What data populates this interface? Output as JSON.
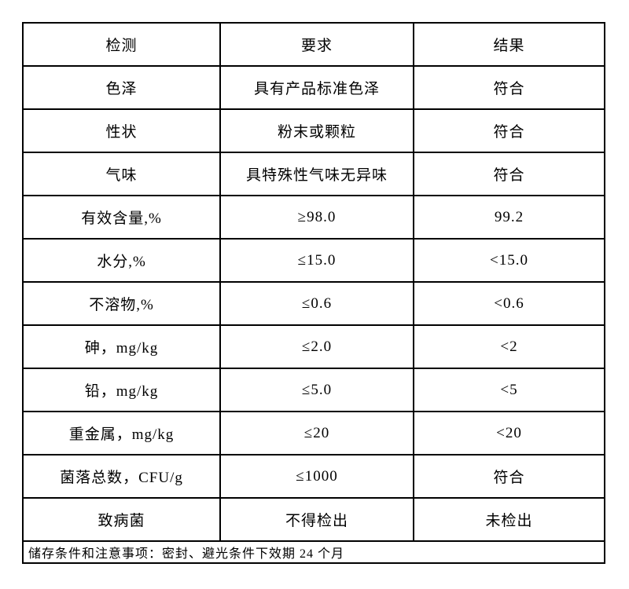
{
  "table": {
    "headers": [
      "检测",
      "要求",
      "结果"
    ],
    "rows": [
      {
        "test": "色泽",
        "requirement": "具有产品标准色泽",
        "result": "符合"
      },
      {
        "test": "性状",
        "requirement": "粉末或颗粒",
        "result": "符合"
      },
      {
        "test": "气味",
        "requirement": "具特殊性气味无异味",
        "result": "符合"
      },
      {
        "test": "有效含量,%",
        "requirement": "≥98.0",
        "result": "99.2"
      },
      {
        "test": "水分,%",
        "requirement": "≤15.0",
        "result": "<15.0"
      },
      {
        "test": "不溶物,%",
        "requirement": "≤0.6",
        "result": "<0.6"
      },
      {
        "test": "砷，mg/kg",
        "requirement": "≤2.0",
        "result": "<2"
      },
      {
        "test": "铅，mg/kg",
        "requirement": "≤5.0",
        "result": "<5"
      },
      {
        "test": "重金属，mg/kg",
        "requirement": "≤20",
        "result": "<20"
      },
      {
        "test": "菌落总数，CFU/g",
        "requirement": "≤1000",
        "result": "符合"
      },
      {
        "test": "致病菌",
        "requirement": "不得检出",
        "result": "未检出"
      }
    ],
    "footer": "储存条件和注意事项：密封、避光条件下效期 24 个月"
  },
  "colors": {
    "border": "#000000",
    "text": "#000000",
    "background": "#ffffff"
  }
}
